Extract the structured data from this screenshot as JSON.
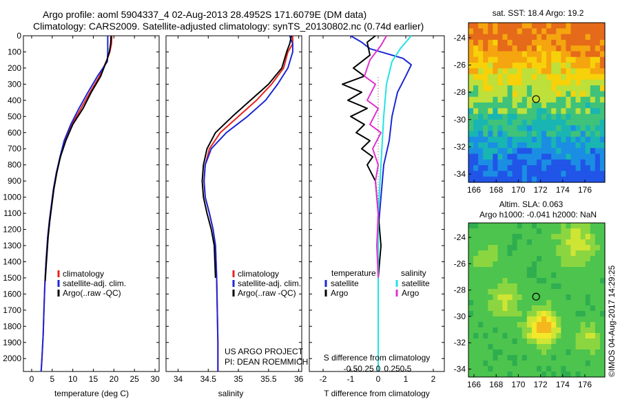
{
  "header": {
    "line1": "Argo profile: aoml 5904337_4 02-Aug-2013 28.4952S 171.6079E (DM data)",
    "line2": "Climatology: CARS2009. Satellite-adjusted climatology: synTS_20130802.nc (0.74d earlier)"
  },
  "footer": {
    "project": "US ARGO PROJECT",
    "pi": "PI: DEAN ROEMMICH",
    "stamp": "©IMOS 04-Aug-2017 14:29:25"
  },
  "colors": {
    "climatology": "#e8231e",
    "satellite": "#1a26d6",
    "argo": "#000000",
    "satellite_salinity": "#22e3e3",
    "argo_salinity": "#e030d0"
  },
  "chart_data": [
    {
      "id": "temperature",
      "type": "line",
      "xlabel": "temperature (deg C)",
      "ylabel": "",
      "xlim": [
        -2,
        31
      ],
      "ylim": [
        2080,
        0
      ],
      "xticks": [
        0,
        5,
        10,
        15,
        20,
        25,
        30
      ],
      "yticks": [
        0,
        100,
        200,
        300,
        400,
        500,
        600,
        700,
        800,
        900,
        1000,
        1100,
        1200,
        1300,
        1400,
        1500,
        1600,
        1700,
        1800,
        1900,
        2000
      ],
      "legend": {
        "position": "lower-right",
        "entries": [
          "climatology",
          "satellite-adj. clim.",
          "Argo(..raw -QC)"
        ]
      },
      "series": [
        {
          "name": "climatology",
          "color": "#e8231e",
          "x": [
            19.5,
            19.4,
            19.0,
            18.3,
            16.5,
            14.2,
            12.0,
            9.8,
            8.0,
            7.0,
            6.0,
            5.3,
            4.8,
            4.3,
            3.9,
            3.5,
            3.2,
            3.0,
            2.8,
            2.6,
            2.45,
            2.3
          ],
          "y": [
            0,
            50,
            100,
            150,
            250,
            350,
            450,
            550,
            650,
            750,
            850,
            950,
            1050,
            1150,
            1250,
            1400,
            1550,
            1700,
            1850,
            1950,
            2020,
            2080
          ]
        },
        {
          "name": "satellite-adj. clim.",
          "color": "#1a26d6",
          "x": [
            18.5,
            18.5,
            18.5,
            18.4,
            16.0,
            13.7,
            11.5,
            9.5,
            7.9,
            6.9,
            6.0,
            5.3,
            4.8,
            4.3,
            3.9,
            3.5,
            3.2,
            3.0,
            2.8,
            2.6,
            2.45,
            2.3
          ],
          "y": [
            0,
            50,
            100,
            160,
            250,
            350,
            450,
            550,
            650,
            750,
            850,
            950,
            1050,
            1150,
            1250,
            1400,
            1550,
            1700,
            1850,
            1950,
            2020,
            2080
          ]
        },
        {
          "name": "Argo(..raw -QC)",
          "color": "#000000",
          "x": [
            19.3,
            19.2,
            18.9,
            18.3,
            16.8,
            14.5,
            12.5,
            10.0,
            8.3,
            7.0,
            6.1,
            5.4,
            4.9,
            4.4,
            4.0,
            3.6,
            3.3
          ],
          "y": [
            0,
            50,
            100,
            150,
            250,
            350,
            450,
            550,
            650,
            750,
            850,
            950,
            1050,
            1150,
            1250,
            1400,
            1520
          ]
        }
      ]
    },
    {
      "id": "salinity",
      "type": "line",
      "xlabel": "salinity",
      "ylabel": "",
      "xlim": [
        33.8,
        36.05
      ],
      "ylim": [
        2080,
        0
      ],
      "xticks": [
        34,
        34.5,
        35,
        35.5,
        36
      ],
      "legend": {
        "position": "lower-right",
        "entries": [
          "climatology",
          "satellite-adj. clim.",
          "Argo(..raw -QC)"
        ]
      },
      "series": [
        {
          "name": "climatology",
          "color": "#e8231e",
          "x": [
            35.9,
            35.9,
            35.82,
            35.75,
            35.55,
            35.3,
            35.0,
            34.7,
            34.52,
            34.45,
            34.43,
            34.45,
            34.52,
            34.58,
            34.62,
            34.64,
            34.65,
            34.66,
            34.66
          ],
          "y": [
            0,
            50,
            100,
            200,
            300,
            400,
            500,
            600,
            700,
            800,
            900,
            1000,
            1100,
            1200,
            1300,
            1500,
            1700,
            1900,
            2080
          ]
        },
        {
          "name": "satellite-adj. clim.",
          "color": "#1a26d6",
          "x": [
            35.85,
            35.9,
            35.9,
            35.82,
            35.65,
            35.45,
            35.15,
            34.8,
            34.55,
            34.45,
            34.43,
            34.45,
            34.52,
            34.58,
            34.62,
            34.64,
            34.65,
            34.66,
            34.66
          ],
          "y": [
            0,
            50,
            100,
            200,
            300,
            400,
            500,
            600,
            700,
            800,
            900,
            1000,
            1100,
            1200,
            1300,
            1500,
            1700,
            1900,
            2080
          ]
        },
        {
          "name": "Argo(..raw -QC)",
          "color": "#000000",
          "x": [
            35.88,
            35.85,
            35.8,
            35.72,
            35.5,
            35.2,
            34.9,
            34.62,
            34.48,
            34.42,
            34.4,
            34.42,
            34.48,
            34.55,
            34.6,
            34.62
          ],
          "y": [
            0,
            50,
            100,
            200,
            300,
            400,
            500,
            600,
            700,
            800,
            900,
            1000,
            1100,
            1200,
            1300,
            1500
          ]
        }
      ]
    },
    {
      "id": "differences",
      "type": "line",
      "xlabel": "T difference from climatology",
      "xlabel_top": "S difference from climatology",
      "xlim": [
        -2.5,
        2.4
      ],
      "ylim": [
        2080,
        0
      ],
      "xticks": [
        -2,
        -1,
        0,
        1,
        2
      ],
      "s_ticks": [
        -0.5,
        -0.25,
        0,
        0.25,
        0.5
      ],
      "s_tick_labels": [
        "-0.5",
        "-0.25",
        "0",
        "0.25",
        "0.5"
      ],
      "legend_titles": [
        "temperature",
        "salinity"
      ],
      "legend": {
        "position": "lower",
        "entries": [
          "satellite",
          "Argo",
          "satellite",
          "Argo"
        ]
      },
      "series": [
        {
          "name": "satellite",
          "group": "temperature",
          "color": "#1a26d6",
          "x": [
            -1.0,
            -0.6,
            -0.3,
            0.9,
            1.2,
            1.0,
            0.7,
            0.5,
            0.4,
            0.2,
            0.1,
            0.0,
            0.0,
            0.0,
            0.0
          ],
          "y": [
            0,
            40,
            80,
            140,
            180,
            250,
            350,
            500,
            650,
            800,
            1000,
            1200,
            1500,
            1800,
            2080
          ]
        },
        {
          "name": "Argo",
          "group": "temperature",
          "color": "#000000",
          "x": [
            -0.1,
            -0.4,
            -0.3,
            -0.9,
            -0.5,
            -1.3,
            -0.6,
            -1.1,
            -0.4,
            -1.0,
            -0.5,
            -0.8,
            -0.3,
            -0.6,
            -0.2,
            -0.4,
            -0.1,
            0.0,
            0.1,
            0.0
          ],
          "y": [
            0,
            40,
            120,
            200,
            250,
            300,
            350,
            400,
            450,
            500,
            550,
            600,
            650,
            700,
            750,
            800,
            900,
            1100,
            1300,
            1500
          ]
        },
        {
          "name": "satellite",
          "group": "salinity",
          "color": "#22e3e3",
          "x": [
            1.2,
            0.8,
            0.5,
            0.3,
            0.2,
            0.1,
            0.0,
            0.0,
            0.0,
            0.0
          ],
          "y": [
            0,
            80,
            160,
            300,
            500,
            800,
            1100,
            1400,
            1700,
            2080
          ]
        },
        {
          "name": "Argo",
          "group": "salinity",
          "color": "#e030d0",
          "x": [
            0.3,
            0.1,
            -0.3,
            -0.5,
            -0.1,
            -0.4,
            0.0,
            -0.3,
            0.1,
            -0.2,
            0.0,
            -0.1,
            0.0,
            -0.05,
            0.0
          ],
          "y": [
            0,
            60,
            150,
            250,
            300,
            400,
            450,
            550,
            600,
            700,
            800,
            900,
            1100,
            1300,
            1500
          ]
        }
      ]
    },
    {
      "id": "sst_map",
      "type": "heatmap",
      "title": "sat. SST: 18.4  Argo: 19.2",
      "xlim": [
        165.5,
        177.8
      ],
      "ylim": [
        -34.6,
        -22.9
      ],
      "xticks": [
        166,
        168,
        170,
        172,
        174,
        176
      ],
      "yticks": [
        -24,
        -26,
        -28,
        -30,
        -32,
        -34
      ],
      "marker": {
        "lon": 171.6,
        "lat": -28.5
      },
      "color_bands": [
        "#e56a1a",
        "#f5a50f",
        "#f7d10a",
        "#bde03a",
        "#3fc27a",
        "#19b5b3",
        "#1b8ee3",
        "#2055e8"
      ]
    },
    {
      "id": "sla_map",
      "type": "heatmap",
      "title": "Altim. SLA: 0.063",
      "subtitle": "Argo h1000: -0.041 h2000: NaN",
      "xlim": [
        165.5,
        177.8
      ],
      "ylim": [
        -34.6,
        -22.9
      ],
      "xticks": [
        166,
        168,
        170,
        172,
        174,
        176
      ],
      "yticks": [
        -24,
        -26,
        -28,
        -30,
        -32,
        -34
      ],
      "marker": {
        "lon": 171.6,
        "lat": -28.5
      },
      "color_bands": [
        "#2fae50",
        "#4cc44e",
        "#8bd640",
        "#cfe534",
        "#f4e82a",
        "#f4b81e"
      ]
    }
  ]
}
